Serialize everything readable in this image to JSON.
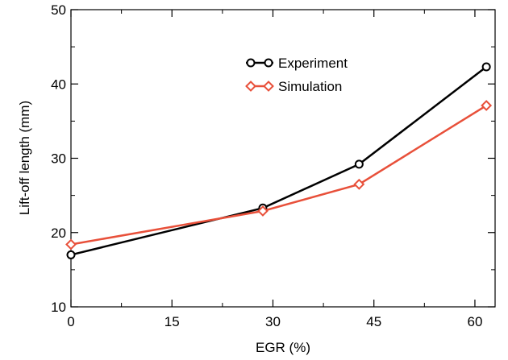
{
  "chart_data": {
    "type": "line",
    "xlabel": "EGR (%)",
    "ylabel": "Lift-off length (mm)",
    "xlim": [
      0,
      63
    ],
    "ylim": [
      10,
      50
    ],
    "xticks": [
      0,
      15,
      30,
      45,
      60
    ],
    "yticks": [
      10,
      20,
      30,
      40,
      50
    ],
    "xtick_labels": [
      "0",
      "15",
      "30",
      "45",
      "60"
    ],
    "ytick_labels": [
      "10",
      "20",
      "30",
      "40",
      "50"
    ],
    "grid": false,
    "legend_position": "top-center",
    "series": [
      {
        "name": "Experiment",
        "color": "#000000",
        "marker": "circle",
        "x": [
          0,
          28.5,
          42.8,
          61.7
        ],
        "y": [
          17.0,
          23.3,
          29.2,
          42.3
        ]
      },
      {
        "name": "Simulation",
        "color": "#e8503a",
        "marker": "diamond",
        "x": [
          0,
          28.5,
          42.8,
          61.7
        ],
        "y": [
          18.4,
          22.9,
          26.5,
          37.1
        ]
      }
    ]
  }
}
